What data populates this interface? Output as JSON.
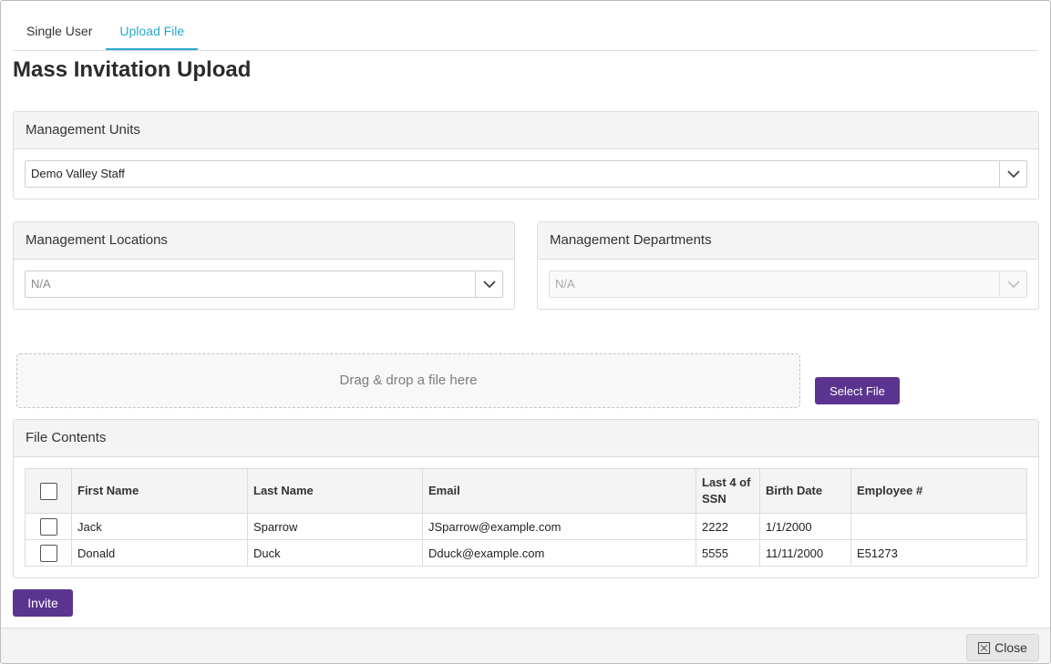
{
  "tabs": [
    {
      "label": "Single User",
      "active": false
    },
    {
      "label": "Upload File",
      "active": true
    }
  ],
  "page_title": "Mass Invitation Upload",
  "management_units": {
    "heading": "Management Units",
    "selected": "Demo Valley Staff"
  },
  "management_locations": {
    "heading": "Management Locations",
    "selected": "N/A"
  },
  "management_departments": {
    "heading": "Management Departments",
    "selected": "N/A",
    "disabled": true
  },
  "upload": {
    "dropzone_text": "Drag & drop a file here",
    "select_file_label": "Select File"
  },
  "file_contents": {
    "heading": "File Contents",
    "columns": [
      "First Name",
      "Last Name",
      "Email",
      "Last 4 of SSN",
      "Birth Date",
      "Employee #"
    ],
    "rows": [
      {
        "first_name": "Jack",
        "last_name": "Sparrow",
        "email": "JSparrow@example.com",
        "ssn_last4": "2222",
        "birth_date": "1/1/2000",
        "employee_no": ""
      },
      {
        "first_name": "Donald",
        "last_name": "Duck",
        "email": "Dduck@example.com",
        "ssn_last4": "5555",
        "birth_date": "11/11/2000",
        "employee_no": "E51273"
      }
    ]
  },
  "invite_label": "Invite",
  "close_label": "Close",
  "colors": {
    "accent_tab": "#27a9c9",
    "primary_button": "#5b3490"
  },
  "icons": {
    "dropdown": "chevron-down-icon",
    "close": "close-icon"
  }
}
